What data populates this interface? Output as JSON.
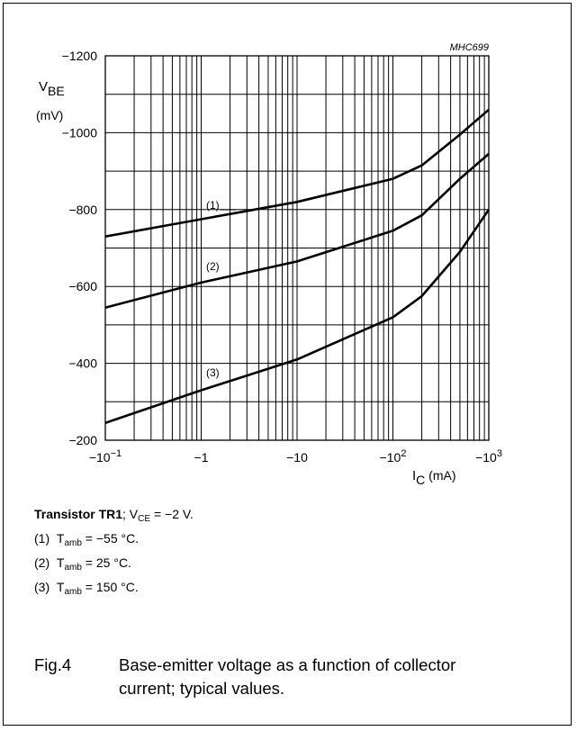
{
  "chart_data": {
    "type": "line",
    "figure_code": "MHC699",
    "x_scale": "log",
    "xlim": [
      -0.1,
      -1000
    ],
    "ylim": [
      -200,
      -1200
    ],
    "ylabel_main": "V",
    "ylabel_sub": "BE",
    "ylabel_unit": "(mV)",
    "xlabel_main": "I",
    "xlabel_sub": "C",
    "xlabel_unit": " (mA)",
    "y_ticks": [
      "−1200",
      "−1000",
      "−800",
      "−600",
      "−400",
      "−200"
    ],
    "x_ticks": [
      {
        "base": "−10",
        "exp": "−1"
      },
      {
        "base": "−1",
        "exp": ""
      },
      {
        "base": "−10",
        "exp": ""
      },
      {
        "base": "−10",
        "exp": "2"
      },
      {
        "base": "−10",
        "exp": "3"
      }
    ],
    "grid": true,
    "series": [
      {
        "name": "(1)",
        "x": [
          -0.1,
          -1,
          -10,
          -100,
          -200,
          -500,
          -1000
        ],
        "y": [
          -730,
          -775,
          -820,
          -880,
          -915,
          -995,
          -1060
        ]
      },
      {
        "name": "(2)",
        "x": [
          -0.1,
          -1,
          -10,
          -100,
          -200,
          -500,
          -1000
        ],
        "y": [
          -545,
          -610,
          -665,
          -745,
          -785,
          -880,
          -945
        ]
      },
      {
        "name": "(3)",
        "x": [
          -0.1,
          -1,
          -10,
          -100,
          -200,
          -500,
          -1000
        ],
        "y": [
          -245,
          -330,
          -410,
          -520,
          -575,
          -690,
          -800
        ]
      }
    ]
  },
  "conditions": {
    "transistor": "Transistor TR1",
    "vce_pre": "; V",
    "vce_sub": "CE",
    "vce_post": " = −2 V.",
    "lines": [
      {
        "num": "(1)",
        "pre": "T",
        "sub": "amb",
        "post": " = −55 °C."
      },
      {
        "num": "(2)",
        "pre": "T",
        "sub": "amb",
        "post": " = 25 °C."
      },
      {
        "num": "(3)",
        "pre": "T",
        "sub": "amb",
        "post": " = 150 °C."
      }
    ]
  },
  "caption": {
    "fig": "Fig.4",
    "text": "Base-emitter voltage as a function of collector current; typical values."
  }
}
